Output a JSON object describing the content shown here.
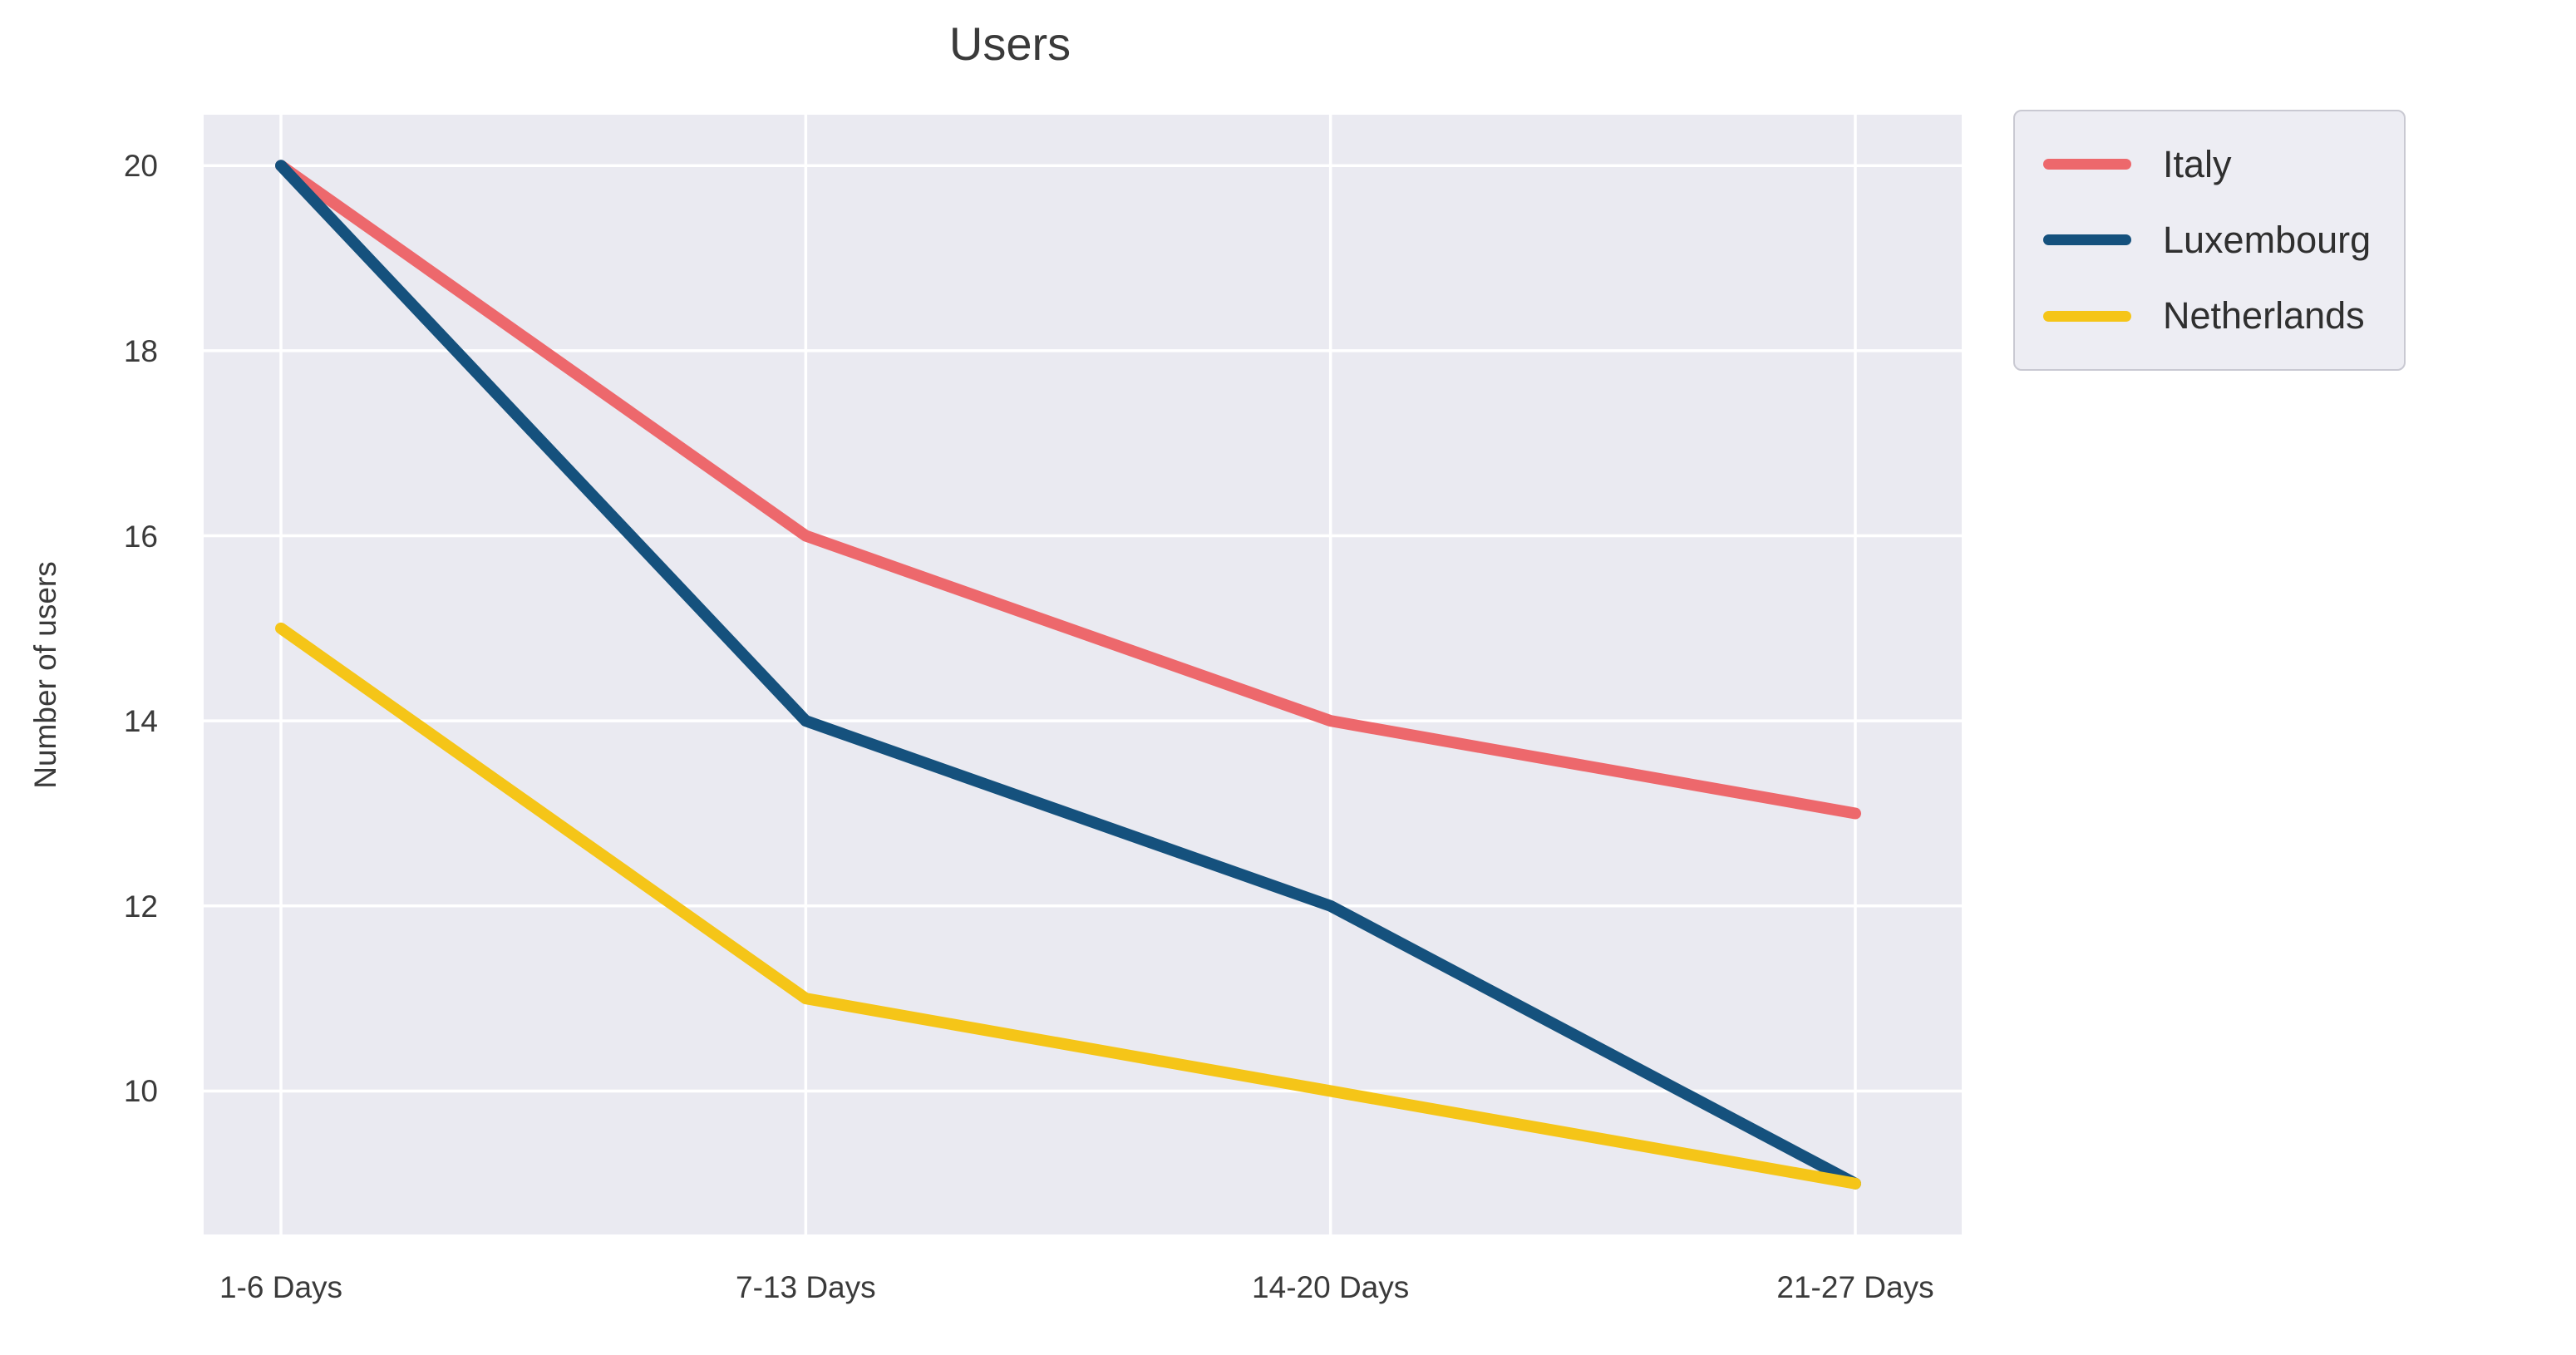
{
  "figure": {
    "background": "#ffffff"
  },
  "chart_data": {
    "type": "line",
    "title": "Users",
    "xlabel": "",
    "ylabel": "Number of users",
    "categories": [
      "1-6 Days",
      "7-13 Days",
      "14-20 Days",
      "21-27 Days"
    ],
    "series": [
      {
        "name": "Italy",
        "color": "#ed686c",
        "values": [
          20,
          16,
          14,
          13
        ]
      },
      {
        "name": "Luxembourg",
        "color": "#15517d",
        "values": [
          20,
          14,
          12,
          9
        ]
      },
      {
        "name": "Netherlands",
        "color": "#f5c518",
        "values": [
          15,
          11,
          10,
          9
        ]
      }
    ],
    "yticks": [
      10,
      12,
      14,
      16,
      18,
      20
    ],
    "ylim": [
      8.45,
      20.55
    ],
    "grid": true,
    "gridline_color": "#ffffff",
    "plot_background": "#eaeaf1",
    "legend_position": "outside-top-right"
  }
}
